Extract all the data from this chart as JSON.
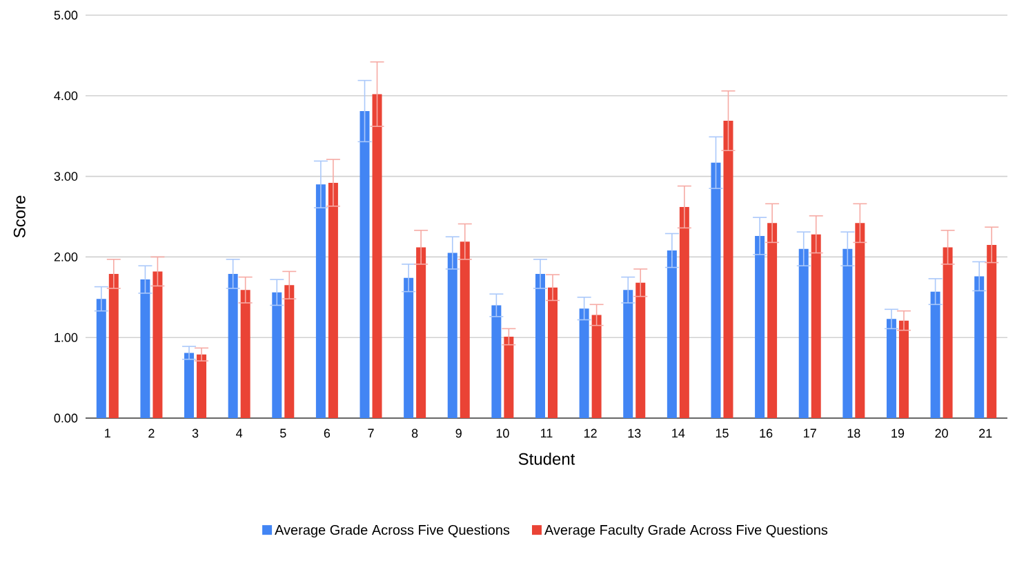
{
  "chart_data": {
    "type": "bar",
    "xlabel": "Student",
    "ylabel": "Score",
    "categories": [
      "1",
      "2",
      "3",
      "4",
      "5",
      "6",
      "7",
      "8",
      "9",
      "10",
      "11",
      "12",
      "13",
      "14",
      "15",
      "16",
      "17",
      "18",
      "19",
      "20",
      "21"
    ],
    "series": [
      {
        "name": "Average Grade Across Five Questions",
        "color": "#4285f4",
        "values": [
          1.48,
          1.72,
          0.81,
          1.79,
          1.56,
          2.9,
          3.81,
          1.74,
          2.05,
          1.4,
          1.79,
          1.36,
          1.59,
          2.08,
          3.17,
          2.26,
          2.1,
          2.1,
          1.23,
          1.57,
          1.76
        ],
        "errors": [
          0.15,
          0.17,
          0.08,
          0.18,
          0.16,
          0.29,
          0.38,
          0.17,
          0.2,
          0.14,
          0.18,
          0.14,
          0.16,
          0.21,
          0.32,
          0.23,
          0.21,
          0.21,
          0.12,
          0.16,
          0.18
        ]
      },
      {
        "name": "Average Faculty Grade Across Five Questions",
        "color": "#ea4335",
        "values": [
          1.79,
          1.82,
          0.79,
          1.59,
          1.65,
          2.92,
          4.02,
          2.12,
          2.19,
          1.01,
          1.62,
          1.28,
          1.68,
          2.62,
          3.69,
          2.42,
          2.28,
          2.42,
          1.21,
          2.12,
          2.15
        ],
        "errors": [
          0.18,
          0.18,
          0.08,
          0.16,
          0.17,
          0.29,
          0.4,
          0.21,
          0.22,
          0.1,
          0.16,
          0.13,
          0.17,
          0.26,
          0.37,
          0.24,
          0.23,
          0.24,
          0.12,
          0.21,
          0.22
        ]
      }
    ],
    "ylim": [
      0,
      5
    ],
    "yticks": [
      {
        "value": 0,
        "label": "0.00"
      },
      {
        "value": 1,
        "label": "1.00"
      },
      {
        "value": 2,
        "label": "2.00"
      },
      {
        "value": 3,
        "label": "3.00"
      },
      {
        "value": 4,
        "label": "4.00"
      },
      {
        "value": 5,
        "label": "5.00"
      }
    ],
    "grid": "y",
    "legend": "bottom"
  }
}
